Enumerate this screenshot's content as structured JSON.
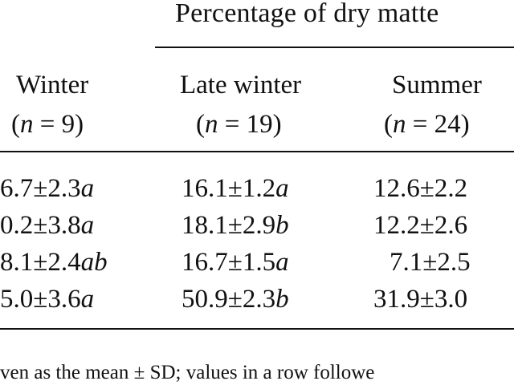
{
  "table": {
    "spanner": "Percentage of dry matte",
    "columns": [
      {
        "name": "Winter",
        "n_label": "(n = 9)"
      },
      {
        "name": "Late winter",
        "n_label": "(n = 19)"
      },
      {
        "name": "Summer",
        "n_label": "(n = 24)"
      }
    ],
    "rows": [
      [
        "6.7±2.3a",
        "16.1±1.2a",
        "12.6±2.2"
      ],
      [
        "0.2±3.8a",
        "18.1±2.9b",
        "12.2±2.6"
      ],
      [
        "8.1±2.4ab",
        "16.7±1.5a",
        "7.1±2.5"
      ],
      [
        "5.0±3.6a",
        "50.9±2.3b",
        "31.9±3.0"
      ]
    ],
    "footnote": "ven as the mean ± SD; values in a row followe"
  }
}
